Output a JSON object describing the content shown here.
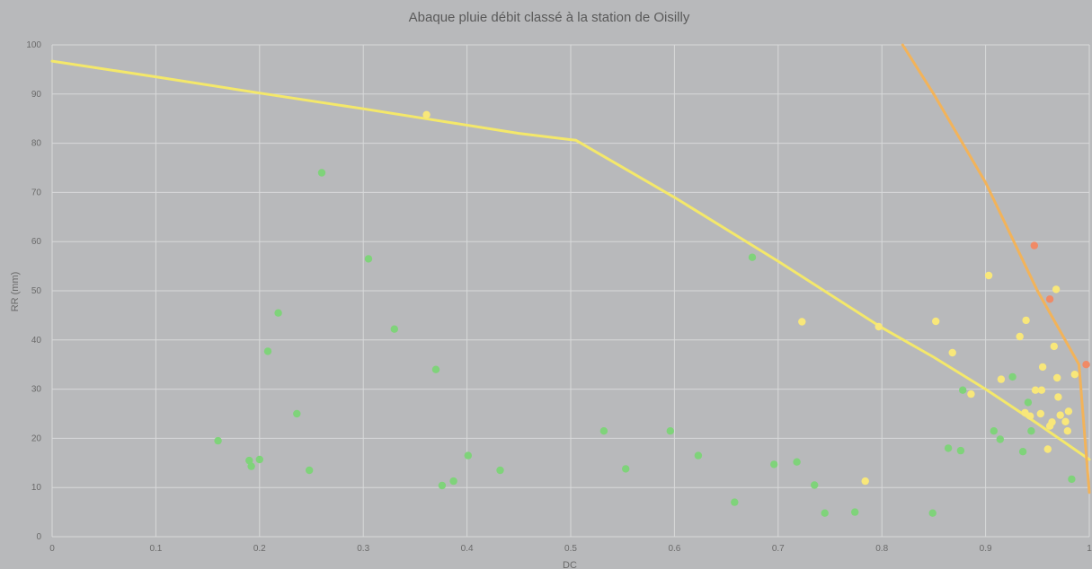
{
  "chart_data": {
    "type": "scatter",
    "title": "Abaque pluie débit classé à la station de Oisilly",
    "xlabel": "DC",
    "ylabel": "RR (mm)",
    "xlim": [
      0,
      1
    ],
    "ylim": [
      0,
      100
    ],
    "xticks": [
      "0",
      "0.1",
      "0.2",
      "0.3",
      "0.4",
      "0.5",
      "0.6",
      "0.7",
      "0.8",
      "0.9",
      "1"
    ],
    "yticks": [
      "0",
      "10",
      "20",
      "30",
      "40",
      "50",
      "60",
      "70",
      "80",
      "90",
      "100"
    ],
    "grid": true,
    "series": [
      {
        "color": "#7fd37a",
        "points": [
          [
            0.16,
            19.5
          ],
          [
            0.19,
            15.5
          ],
          [
            0.192,
            14.3
          ],
          [
            0.2,
            15.7
          ],
          [
            0.208,
            37.7
          ],
          [
            0.218,
            45.5
          ],
          [
            0.236,
            25
          ],
          [
            0.248,
            13.5
          ],
          [
            0.26,
            74
          ],
          [
            0.305,
            56.5
          ],
          [
            0.33,
            42.2
          ],
          [
            0.37,
            34
          ],
          [
            0.376,
            10.4
          ],
          [
            0.387,
            11.3
          ],
          [
            0.401,
            16.5
          ],
          [
            0.432,
            13.5
          ],
          [
            0.532,
            21.5
          ],
          [
            0.553,
            13.8
          ],
          [
            0.596,
            21.5
          ],
          [
            0.623,
            16.5
          ],
          [
            0.658,
            7
          ],
          [
            0.675,
            56.8
          ],
          [
            0.696,
            14.7
          ],
          [
            0.718,
            15.2
          ],
          [
            0.735,
            10.5
          ],
          [
            0.745,
            4.8
          ],
          [
            0.774,
            5
          ],
          [
            0.849,
            4.8
          ],
          [
            0.864,
            18
          ],
          [
            0.876,
            17.5
          ],
          [
            0.878,
            29.8
          ],
          [
            0.908,
            21.5
          ],
          [
            0.914,
            19.8
          ],
          [
            0.926,
            32.5
          ],
          [
            0.936,
            17.3
          ],
          [
            0.941,
            27.3
          ],
          [
            0.944,
            21.5
          ],
          [
            0.983,
            11.7
          ]
        ]
      },
      {
        "color": "#f8e77a",
        "points": [
          [
            0.361,
            85.8
          ],
          [
            0.723,
            43.7
          ],
          [
            0.784,
            11.3
          ],
          [
            0.797,
            42.7
          ],
          [
            0.852,
            43.8
          ],
          [
            0.868,
            37.4
          ],
          [
            0.886,
            29
          ],
          [
            0.903,
            53.1
          ],
          [
            0.915,
            32
          ],
          [
            0.933,
            40.7
          ],
          [
            0.938,
            25.2
          ],
          [
            0.939,
            44
          ],
          [
            0.943,
            24.5
          ],
          [
            0.948,
            29.8
          ],
          [
            0.953,
            25
          ],
          [
            0.954,
            29.8
          ],
          [
            0.955,
            34.5
          ],
          [
            0.96,
            17.8
          ],
          [
            0.962,
            22.5
          ],
          [
            0.964,
            23.3
          ],
          [
            0.966,
            38.7
          ],
          [
            0.968,
            50.3
          ],
          [
            0.969,
            32.3
          ],
          [
            0.97,
            28.4
          ],
          [
            0.972,
            24.7
          ],
          [
            0.977,
            23.4
          ],
          [
            0.979,
            21.5
          ],
          [
            0.98,
            25.5
          ],
          [
            0.986,
            33
          ]
        ]
      },
      {
        "color": "#f08a66",
        "points": [
          [
            0.947,
            59.2
          ],
          [
            0.962,
            48.3
          ],
          [
            0.997,
            35
          ]
        ]
      }
    ],
    "lines": [
      {
        "color": "#f4e86a",
        "points": [
          [
            0,
            96.7
          ],
          [
            0.1,
            93.5
          ],
          [
            0.2,
            90.2
          ],
          [
            0.3,
            87
          ],
          [
            0.36,
            85
          ],
          [
            0.45,
            82
          ],
          [
            0.505,
            80.6
          ],
          [
            0.6,
            69
          ],
          [
            0.7,
            56
          ],
          [
            0.8,
            42.5
          ],
          [
            0.85,
            36.5
          ],
          [
            0.9,
            30
          ],
          [
            0.95,
            23
          ],
          [
            1.0,
            15.7
          ]
        ]
      },
      {
        "color": "#f2b35a",
        "points": [
          [
            0.82,
            100
          ],
          [
            0.85,
            90
          ],
          [
            0.9,
            72
          ],
          [
            0.95,
            50
          ],
          [
            0.99,
            35
          ],
          [
            1.0,
            9
          ]
        ]
      }
    ]
  }
}
